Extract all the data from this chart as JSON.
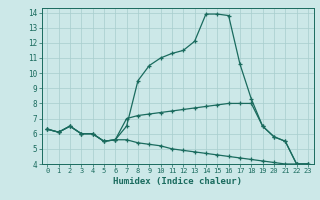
{
  "xlabel": "Humidex (Indice chaleur)",
  "xlim": [
    -0.5,
    23.5
  ],
  "ylim": [
    4,
    14.3
  ],
  "xticks": [
    0,
    1,
    2,
    3,
    4,
    5,
    6,
    7,
    8,
    9,
    10,
    11,
    12,
    13,
    14,
    15,
    16,
    17,
    18,
    19,
    20,
    21,
    22,
    23
  ],
  "yticks": [
    4,
    5,
    6,
    7,
    8,
    9,
    10,
    11,
    12,
    13,
    14
  ],
  "bg_color": "#cce8e8",
  "line_color": "#1a6b5e",
  "grid_color": "#a8cece",
  "series": [
    [
      6.3,
      6.1,
      6.5,
      6.0,
      6.0,
      5.5,
      5.6,
      6.5,
      9.5,
      10.5,
      11.0,
      11.3,
      11.5,
      12.1,
      13.9,
      13.9,
      13.8,
      10.6,
      8.3,
      6.5,
      5.8,
      5.5,
      4.0,
      4.0
    ],
    [
      6.3,
      6.1,
      6.5,
      6.0,
      6.0,
      5.5,
      5.6,
      7.0,
      7.2,
      7.3,
      7.4,
      7.5,
      7.6,
      7.7,
      7.8,
      7.9,
      8.0,
      8.0,
      8.0,
      6.5,
      5.8,
      5.5,
      4.0,
      4.0
    ],
    [
      6.3,
      6.1,
      6.5,
      6.0,
      6.0,
      5.5,
      5.6,
      5.6,
      5.4,
      5.3,
      5.2,
      5.0,
      4.9,
      4.8,
      4.7,
      4.6,
      4.5,
      4.4,
      4.3,
      4.2,
      4.1,
      4.0,
      4.0,
      4.0
    ]
  ]
}
